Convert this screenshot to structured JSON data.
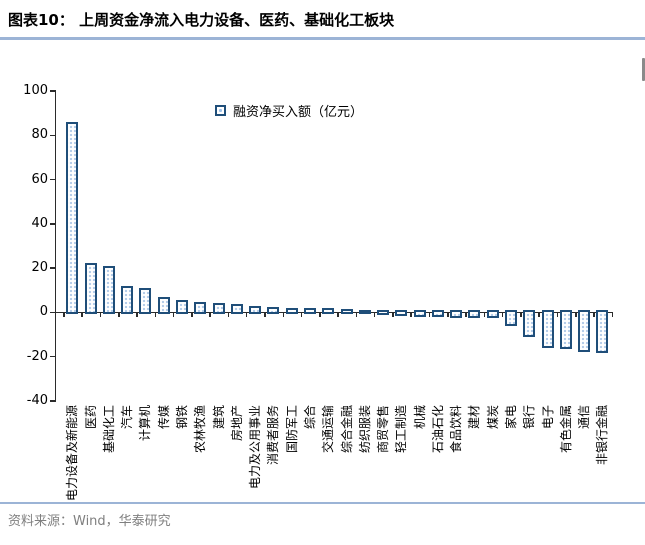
{
  "header": {
    "title": "图表10：  上周资金净流入电力设备、医药、基础化工板块"
  },
  "chart_data": {
    "type": "bar",
    "title": "上周资金净流入电力设备、医药、基础化工板块",
    "legend": "融资净买入额（亿元）",
    "ylabel": "",
    "xlabel": "",
    "ylim": [
      -40,
      100
    ],
    "yticks": [
      100,
      80,
      60,
      40,
      20,
      0,
      -20,
      -40
    ],
    "grid": false,
    "legend_position": "top-center",
    "categories": [
      "电力设备及新能源",
      "医药",
      "基础化工",
      "汽车",
      "计算机",
      "传媒",
      "钢铁",
      "农林牧渔",
      "建筑",
      "房地产",
      "电力及公用事业",
      "消费者服务",
      "国防军工",
      "综合",
      "交通运输",
      "综合金融",
      "纺织服装",
      "商贸零售",
      "轻工制造",
      "机械",
      "石油石化",
      "食品饮料",
      "建材",
      "煤炭",
      "家电",
      "银行",
      "电子",
      "有色金属",
      "通信",
      "非银行金融"
    ],
    "values": [
      85,
      21.5,
      20,
      11,
      10,
      6,
      4.5,
      3.8,
      3.3,
      2.8,
      2.1,
      1.6,
      1.3,
      1.1,
      0.9,
      0.6,
      0.3,
      -0.4,
      -0.7,
      -1.0,
      -1.2,
      -1.5,
      -1.6,
      -1.8,
      -5.3,
      -10.2,
      -15.3,
      -15.7,
      -16.8,
      -17.6
    ]
  },
  "footer": {
    "source": "资料来源：Wind，华泰研究"
  },
  "colors": {
    "accent_rule": "#9cb4d6",
    "bar_border": "#1f4e79",
    "bar_dot": "#b5cde9",
    "axis": "#2b2b2b",
    "footer_text": "#7f7f7f"
  }
}
